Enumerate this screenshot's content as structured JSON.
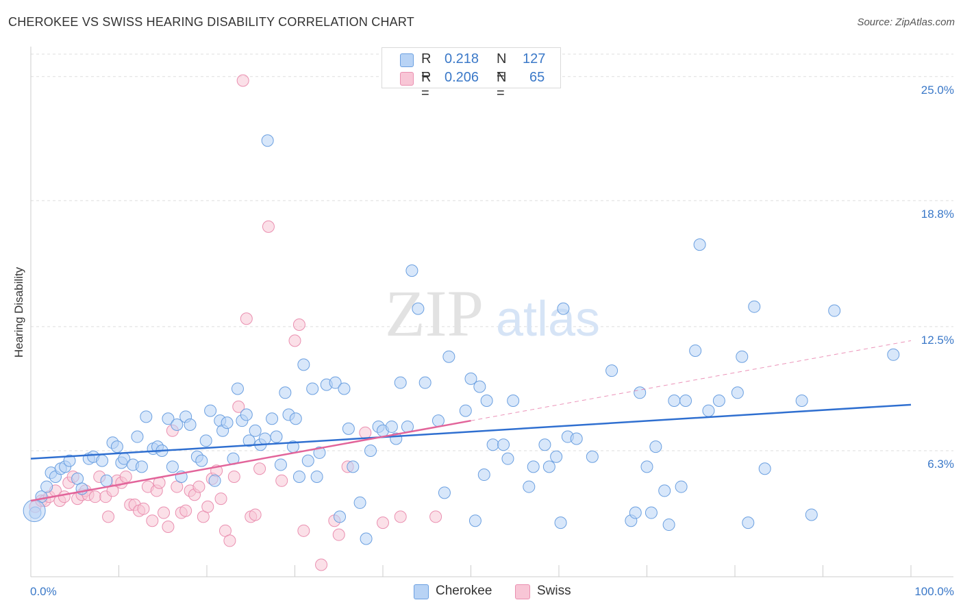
{
  "title": "CHEROKEE VS SWISS HEARING DISABILITY CORRELATION CHART",
  "source": "Source: ZipAtlas.com",
  "watermark": {
    "zip": "ZIP",
    "atlas": "atlas"
  },
  "legend_top": {
    "rows": [
      {
        "r_label": "R =",
        "r_value": "0.218",
        "n_label": "N =",
        "n_value": "127"
      },
      {
        "r_label": "R =",
        "r_value": "0.206",
        "n_label": "N =",
        "n_value": "65"
      }
    ]
  },
  "colors": {
    "cherokee_fill": "#b8d3f5",
    "cherokee_stroke": "#6a9fe0",
    "cherokee_line": "#2f6fd0",
    "swiss_fill": "#f8c6d6",
    "swiss_stroke": "#ea8fb0",
    "swiss_line": "#e2649a",
    "tick_label": "#3a78c8",
    "grid": "#dddddd"
  },
  "chart_data": {
    "type": "scatter",
    "title": "CHEROKEE VS SWISS HEARING DISABILITY CORRELATION CHART",
    "xlabel": "",
    "ylabel": "Hearing Disability",
    "xlim": [
      0,
      100
    ],
    "ylim": [
      0,
      26.5
    ],
    "x_tick_labels": [
      "0.0%",
      "100.0%"
    ],
    "y_ticks": [
      6.3,
      12.5,
      18.8,
      25.0
    ],
    "y_tick_labels": [
      "6.3%",
      "12.5%",
      "18.8%",
      "25.0%"
    ],
    "grid": true,
    "legend_position": "top-center",
    "series": [
      {
        "name": "Cherokee",
        "r": 0.218,
        "n": 127,
        "trend": {
          "x": [
            0,
            100
          ],
          "y": [
            5.9,
            8.6
          ]
        },
        "points": [
          [
            0.5,
            3.2
          ],
          [
            1.2,
            4.0
          ],
          [
            1.8,
            4.5
          ],
          [
            2.3,
            5.2
          ],
          [
            2.8,
            5.0
          ],
          [
            3.4,
            5.4
          ],
          [
            3.9,
            5.5
          ],
          [
            4.4,
            5.8
          ],
          [
            5.3,
            4.9
          ],
          [
            5.8,
            4.4
          ],
          [
            6.6,
            5.9
          ],
          [
            7.1,
            6.0
          ],
          [
            8.1,
            5.8
          ],
          [
            8.6,
            4.8
          ],
          [
            9.3,
            6.7
          ],
          [
            9.8,
            6.5
          ],
          [
            10.3,
            5.7
          ],
          [
            10.6,
            5.9
          ],
          [
            11.6,
            5.6
          ],
          [
            12.1,
            7.0
          ],
          [
            12.6,
            5.5
          ],
          [
            13.1,
            8.0
          ],
          [
            13.9,
            6.4
          ],
          [
            14.4,
            6.5
          ],
          [
            14.9,
            6.3
          ],
          [
            15.6,
            7.9
          ],
          [
            16.1,
            5.5
          ],
          [
            16.6,
            7.6
          ],
          [
            17.1,
            5.0
          ],
          [
            17.6,
            8.0
          ],
          [
            18.1,
            7.6
          ],
          [
            18.9,
            6.0
          ],
          [
            19.4,
            5.8
          ],
          [
            19.9,
            6.8
          ],
          [
            20.4,
            8.3
          ],
          [
            20.9,
            4.8
          ],
          [
            21.5,
            7.8
          ],
          [
            21.8,
            7.3
          ],
          [
            22.3,
            7.7
          ],
          [
            23.0,
            5.9
          ],
          [
            23.5,
            9.4
          ],
          [
            24.0,
            7.8
          ],
          [
            24.5,
            8.1
          ],
          [
            24.8,
            6.8
          ],
          [
            25.5,
            7.3
          ],
          [
            26.1,
            6.6
          ],
          [
            26.6,
            6.9
          ],
          [
            26.9,
            21.8
          ],
          [
            27.4,
            7.9
          ],
          [
            27.9,
            7.0
          ],
          [
            28.4,
            5.6
          ],
          [
            28.9,
            9.2
          ],
          [
            29.3,
            8.1
          ],
          [
            29.8,
            6.5
          ],
          [
            30.1,
            7.9
          ],
          [
            30.5,
            5.0
          ],
          [
            31.0,
            10.6
          ],
          [
            31.5,
            5.8
          ],
          [
            32.0,
            9.4
          ],
          [
            32.5,
            5.0
          ],
          [
            32.8,
            6.2
          ],
          [
            33.6,
            9.6
          ],
          [
            34.6,
            9.7
          ],
          [
            35.1,
            3.0
          ],
          [
            35.6,
            9.4
          ],
          [
            36.1,
            7.4
          ],
          [
            36.6,
            5.5
          ],
          [
            37.4,
            3.7
          ],
          [
            38.1,
            1.9
          ],
          [
            38.6,
            6.3
          ],
          [
            39.5,
            7.5
          ],
          [
            40.0,
            7.3
          ],
          [
            41.0,
            7.5
          ],
          [
            41.5,
            6.9
          ],
          [
            42.0,
            9.7
          ],
          [
            42.8,
            7.5
          ],
          [
            43.3,
            15.3
          ],
          [
            44.0,
            13.4
          ],
          [
            44.8,
            9.7
          ],
          [
            46.3,
            7.8
          ],
          [
            47.0,
            4.2
          ],
          [
            47.5,
            11.0
          ],
          [
            49.4,
            8.3
          ],
          [
            50.0,
            9.9
          ],
          [
            50.5,
            2.8
          ],
          [
            51.0,
            9.5
          ],
          [
            51.5,
            5.1
          ],
          [
            51.8,
            8.8
          ],
          [
            52.5,
            6.6
          ],
          [
            53.7,
            6.6
          ],
          [
            54.2,
            5.9
          ],
          [
            54.8,
            8.8
          ],
          [
            56.6,
            4.5
          ],
          [
            57.1,
            5.5
          ],
          [
            58.4,
            6.6
          ],
          [
            58.9,
            5.5
          ],
          [
            59.7,
            6.0
          ],
          [
            60.2,
            2.7
          ],
          [
            60.5,
            13.4
          ],
          [
            61.0,
            7.0
          ],
          [
            62.0,
            6.9
          ],
          [
            63.8,
            6.0
          ],
          [
            66.0,
            10.3
          ],
          [
            68.2,
            2.8
          ],
          [
            68.7,
            3.2
          ],
          [
            69.2,
            9.2
          ],
          [
            70.0,
            5.5
          ],
          [
            70.5,
            3.2
          ],
          [
            71.0,
            6.5
          ],
          [
            72.0,
            4.3
          ],
          [
            72.5,
            2.6
          ],
          [
            73.1,
            8.8
          ],
          [
            73.9,
            4.5
          ],
          [
            74.4,
            8.8
          ],
          [
            75.5,
            11.3
          ],
          [
            76.0,
            16.6
          ],
          [
            77.0,
            8.3
          ],
          [
            78.2,
            8.8
          ],
          [
            80.3,
            9.2
          ],
          [
            80.8,
            11.0
          ],
          [
            81.5,
            2.7
          ],
          [
            82.2,
            13.5
          ],
          [
            83.4,
            5.4
          ],
          [
            87.6,
            8.8
          ],
          [
            88.7,
            3.1
          ],
          [
            91.3,
            13.3
          ],
          [
            98.0,
            11.1
          ]
        ]
      },
      {
        "name": "Swiss",
        "r": 0.206,
        "n": 65,
        "trend": {
          "x": [
            0,
            50
          ],
          "y": [
            3.8,
            7.8
          ],
          "dashed_extension": {
            "x": [
              50,
              100
            ],
            "y": [
              7.8,
              11.8
            ]
          }
        },
        "points": [
          [
            0.5,
            3.5
          ],
          [
            1.2,
            3.8
          ],
          [
            1.6,
            3.8
          ],
          [
            2.1,
            4.0
          ],
          [
            2.8,
            4.3
          ],
          [
            3.3,
            3.8
          ],
          [
            3.8,
            4.0
          ],
          [
            4.3,
            4.7
          ],
          [
            4.8,
            5.0
          ],
          [
            5.3,
            3.9
          ],
          [
            5.8,
            4.1
          ],
          [
            6.2,
            4.3
          ],
          [
            6.5,
            4.1
          ],
          [
            7.3,
            4.0
          ],
          [
            7.8,
            5.0
          ],
          [
            8.5,
            4.0
          ],
          [
            8.8,
            3.0
          ],
          [
            9.3,
            4.3
          ],
          [
            9.8,
            4.8
          ],
          [
            10.3,
            4.7
          ],
          [
            10.8,
            5.0
          ],
          [
            11.3,
            3.6
          ],
          [
            11.8,
            3.6
          ],
          [
            12.3,
            3.3
          ],
          [
            12.8,
            3.4
          ],
          [
            13.3,
            4.5
          ],
          [
            13.8,
            2.8
          ],
          [
            14.3,
            4.3
          ],
          [
            14.6,
            4.7
          ],
          [
            15.1,
            3.2
          ],
          [
            15.6,
            2.5
          ],
          [
            16.1,
            7.3
          ],
          [
            16.6,
            4.5
          ],
          [
            17.1,
            3.2
          ],
          [
            17.6,
            3.3
          ],
          [
            18.1,
            4.3
          ],
          [
            18.6,
            4.1
          ],
          [
            19.1,
            4.5
          ],
          [
            19.6,
            3.0
          ],
          [
            20.1,
            3.5
          ],
          [
            20.6,
            4.9
          ],
          [
            21.1,
            5.3
          ],
          [
            21.6,
            3.9
          ],
          [
            22.1,
            2.3
          ],
          [
            22.6,
            1.8
          ],
          [
            23.1,
            5.0
          ],
          [
            23.6,
            8.5
          ],
          [
            24.1,
            24.8
          ],
          [
            24.5,
            12.9
          ],
          [
            25.0,
            3.0
          ],
          [
            25.5,
            3.1
          ],
          [
            26.0,
            5.4
          ],
          [
            27.0,
            17.5
          ],
          [
            28.5,
            4.8
          ],
          [
            30.0,
            11.8
          ],
          [
            30.5,
            12.6
          ],
          [
            31.0,
            2.3
          ],
          [
            33.0,
            0.6
          ],
          [
            34.5,
            2.8
          ],
          [
            35.0,
            2.1
          ],
          [
            36.0,
            5.5
          ],
          [
            38.0,
            7.2
          ],
          [
            40.0,
            2.7
          ],
          [
            42.0,
            3.0
          ],
          [
            46.0,
            3.0
          ]
        ]
      }
    ]
  }
}
